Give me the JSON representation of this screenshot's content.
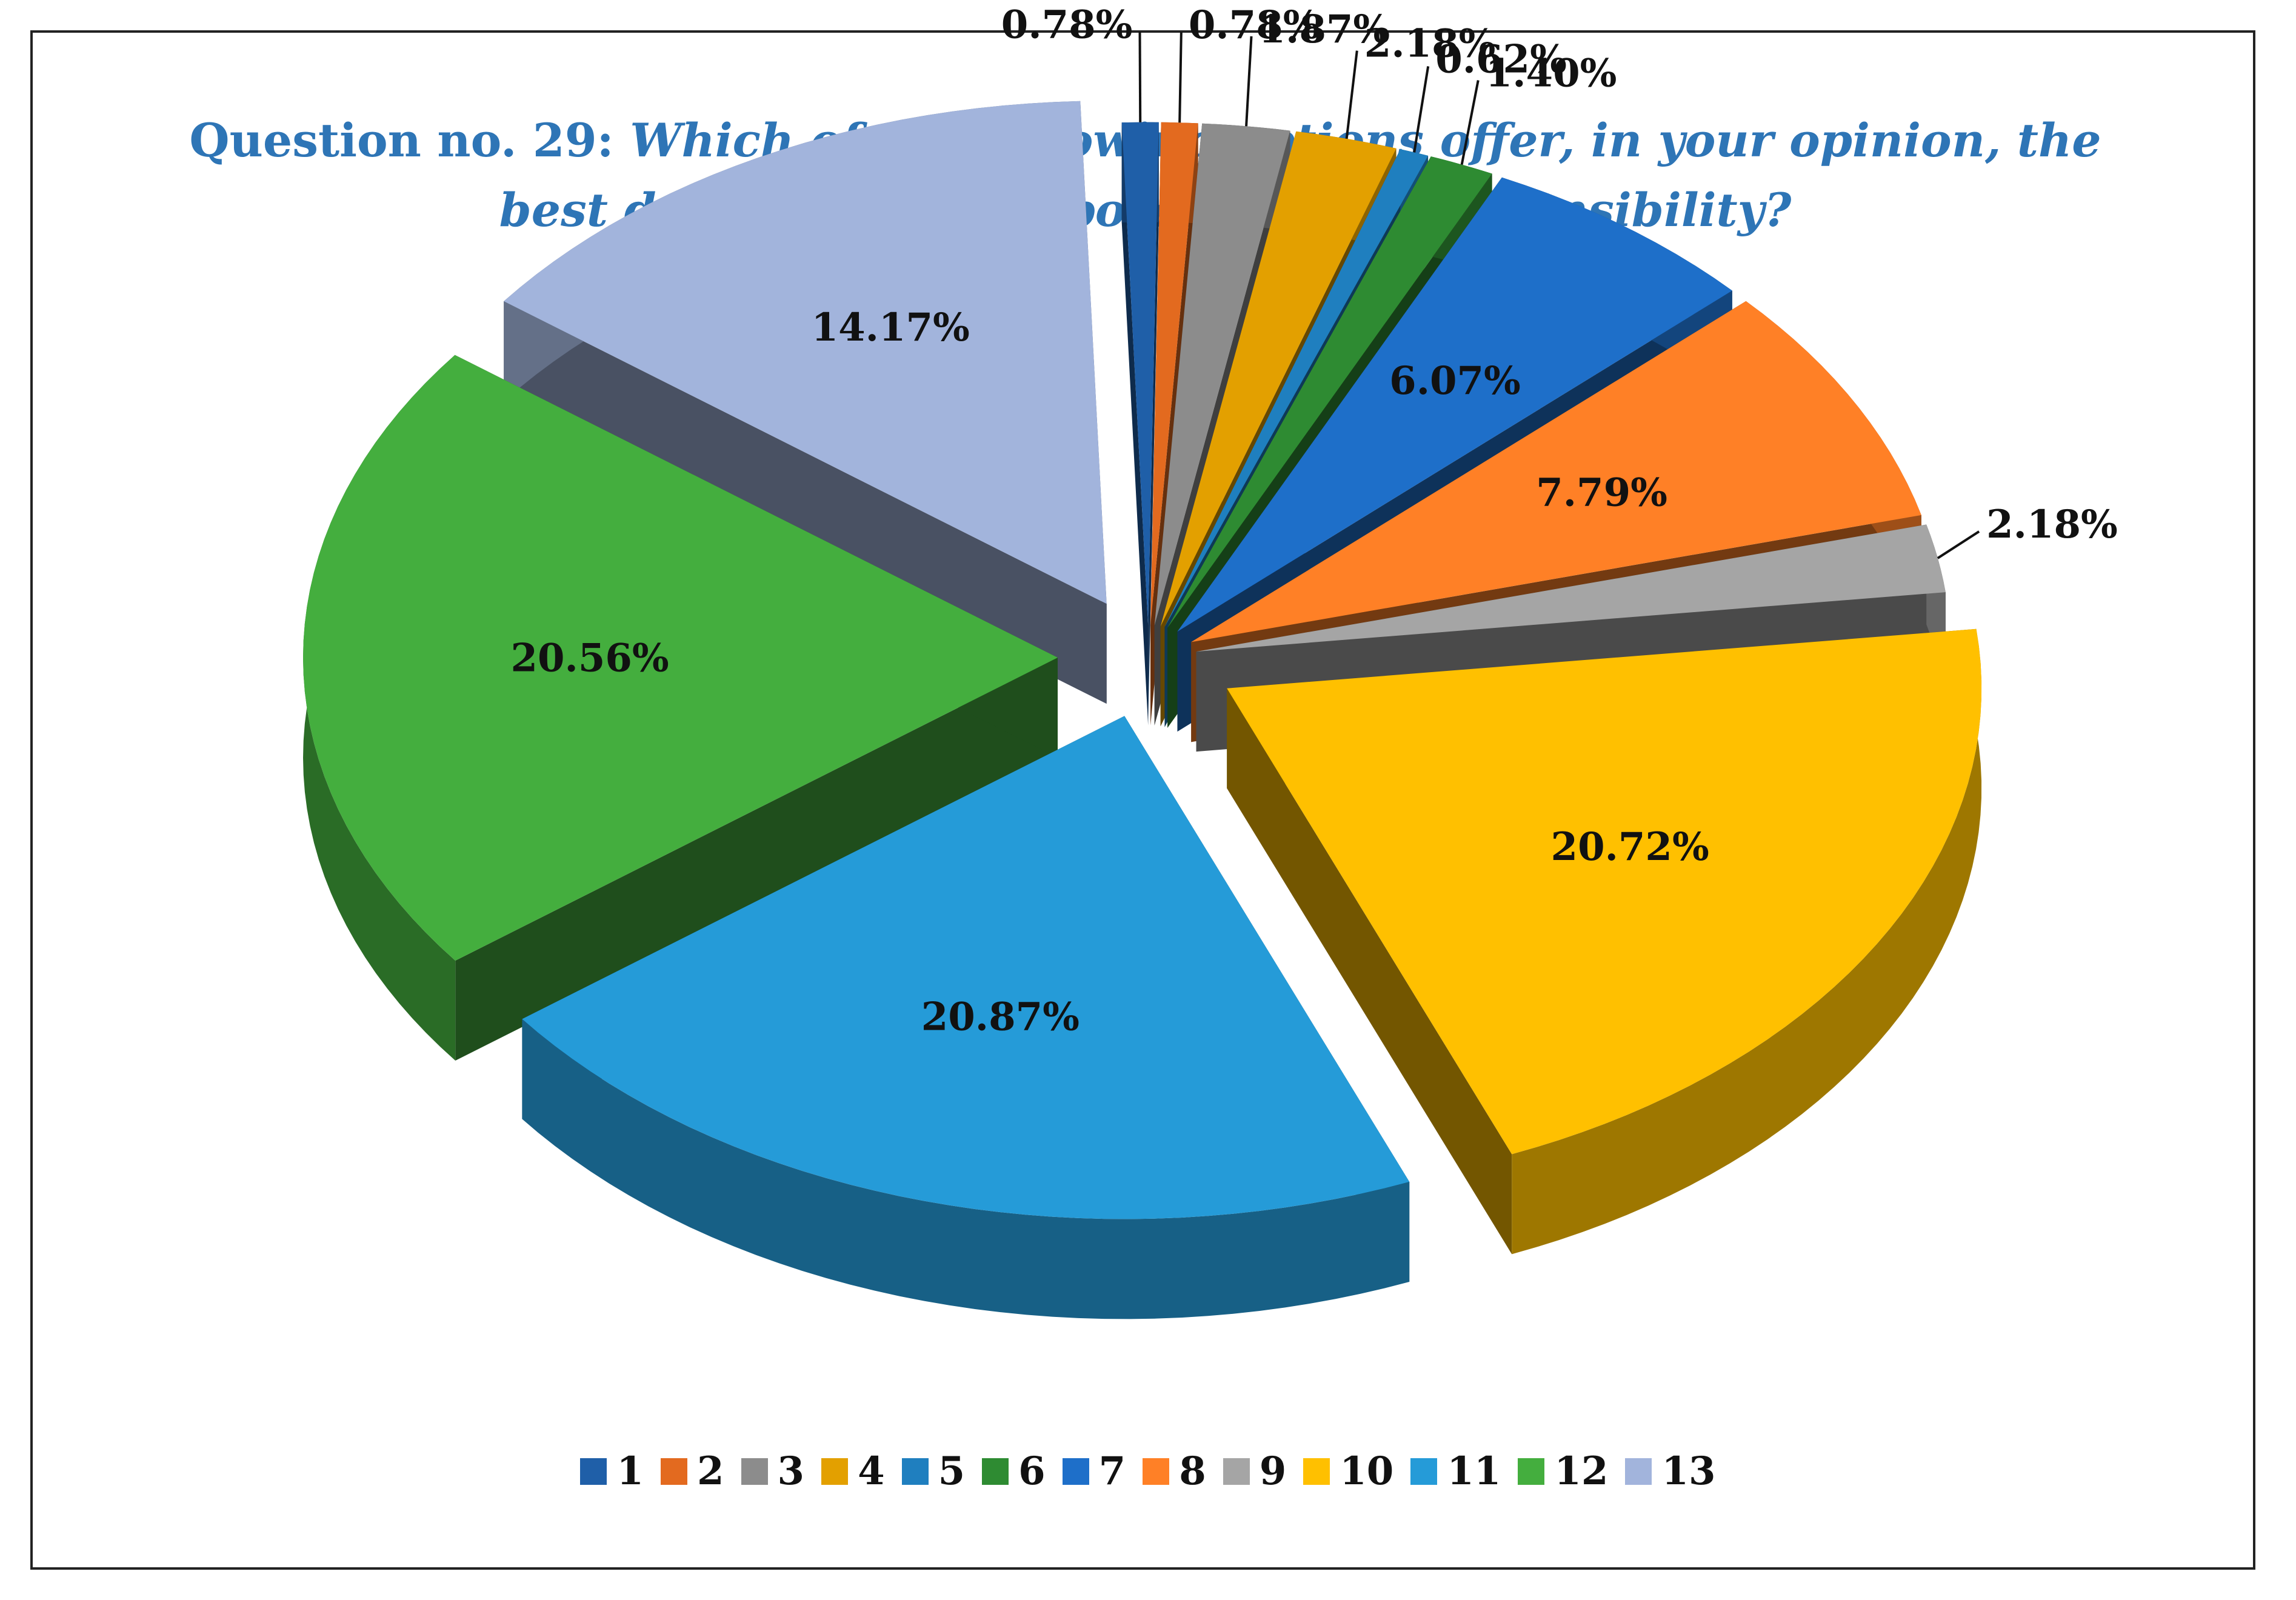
{
  "chart_data": {
    "type": "pie",
    "title_prefix": "Question no. 29: ",
    "title_question_line1": "Which of the following options offer, in your opinion, the",
    "title_question_line2": "best definition for corporate social responsibility?",
    "categories": [
      "1",
      "2",
      "3",
      "4",
      "5",
      "6",
      "7",
      "8",
      "9",
      "10",
      "11",
      "12",
      "13"
    ],
    "values": [
      0.78,
      0.78,
      1.87,
      2.18,
      0.62,
      1.4,
      6.07,
      7.79,
      2.18,
      20.72,
      20.87,
      20.56,
      14.17
    ],
    "labels": [
      "0.78%",
      "0.78%",
      "1.87%",
      "2.18%",
      "0.62%",
      "1.40%",
      "6.07%",
      "7.79%",
      "2.18%",
      "20.72%",
      "20.87%",
      "20.56%",
      "14.17%"
    ],
    "colors": [
      "#1F5FA8",
      "#E36A1F",
      "#8C8C8C",
      "#E3A000",
      "#1F7FBF",
      "#2E8B32",
      "#1E6FC9",
      "#FF8026",
      "#A5A5A5",
      "#FFC000",
      "#259BD8",
      "#44AE3E",
      "#A2B4DC"
    ],
    "legend_position": "bottom",
    "exploded": true,
    "style": "3d"
  }
}
